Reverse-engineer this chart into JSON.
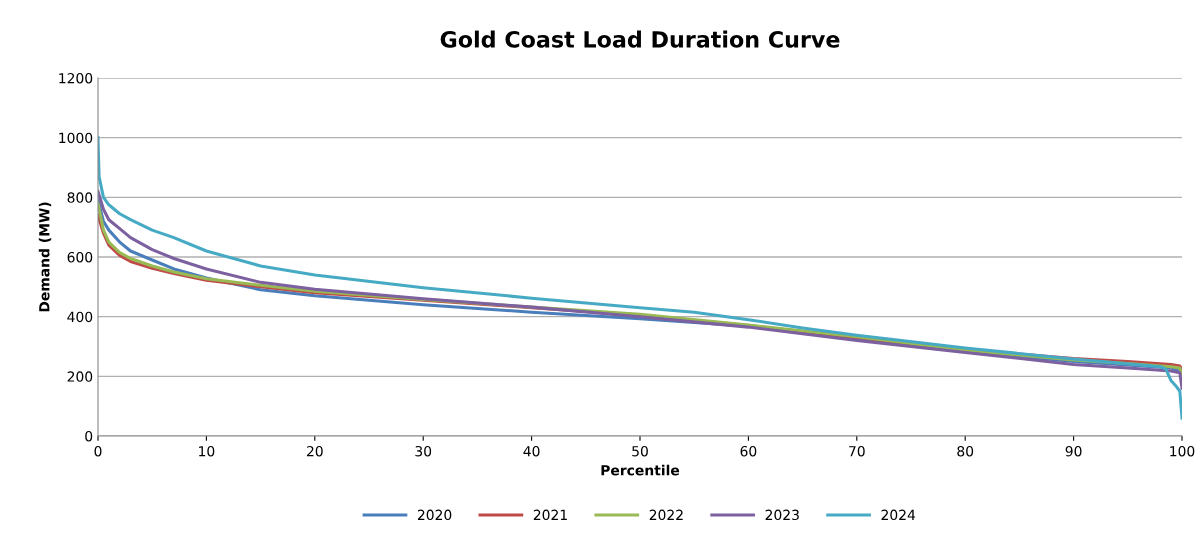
{
  "chart_data": {
    "type": "line",
    "title": "Gold Coast Load Duration Curve",
    "xlabel": "Percentile",
    "ylabel": "Demand (MW)",
    "xlim": [
      0,
      100
    ],
    "xticks": [
      0,
      10,
      20,
      30,
      40,
      50,
      60,
      70,
      80,
      90,
      100
    ],
    "ylim": [
      0,
      1200
    ],
    "yticks": [
      0,
      200,
      400,
      600,
      800,
      1000,
      1200
    ],
    "grid": "y",
    "legend": "bottom",
    "marker": "none",
    "line_style": "solid",
    "series": [
      {
        "name": "2020",
        "color": "#4a7ebb",
        "x": [
          0,
          0.5,
          1,
          2,
          3,
          5,
          7,
          10,
          15,
          20,
          30,
          40,
          50,
          60,
          70,
          80,
          90,
          95,
          99,
          100
        ],
        "values": [
          790,
          720,
          690,
          650,
          620,
          590,
          560,
          530,
          490,
          470,
          440,
          415,
          393,
          368,
          325,
          285,
          250,
          238,
          228,
          215
        ]
      },
      {
        "name": "2021",
        "color": "#be4b48",
        "x": [
          0,
          0.5,
          1,
          2,
          3,
          5,
          7,
          10,
          15,
          20,
          30,
          40,
          50,
          60,
          70,
          80,
          90,
          95,
          99,
          99.8,
          100
        ],
        "values": [
          740,
          680,
          640,
          605,
          585,
          562,
          545,
          522,
          500,
          480,
          455,
          430,
          405,
          370,
          330,
          290,
          260,
          250,
          240,
          235,
          220
        ]
      },
      {
        "name": "2022",
        "color": "#98b954",
        "x": [
          0,
          0.5,
          1,
          2,
          3,
          5,
          7,
          10,
          15,
          20,
          30,
          40,
          50,
          60,
          70,
          80,
          90,
          95,
          99,
          99.8,
          100
        ],
        "values": [
          780,
          690,
          650,
          615,
          595,
          570,
          550,
          527,
          505,
          485,
          458,
          432,
          408,
          372,
          333,
          288,
          255,
          243,
          232,
          228,
          195
        ]
      },
      {
        "name": "2023",
        "color": "#7d60a0",
        "x": [
          0,
          0.5,
          1,
          2,
          3,
          5,
          7,
          10,
          15,
          20,
          30,
          40,
          50,
          60,
          70,
          80,
          90,
          95,
          99,
          99.8,
          100
        ],
        "values": [
          820,
          760,
          725,
          695,
          665,
          625,
          595,
          560,
          515,
          492,
          460,
          432,
          400,
          365,
          320,
          280,
          240,
          228,
          218,
          212,
          160
        ]
      },
      {
        "name": "2024",
        "color": "#46aac5",
        "x": [
          0,
          0.1,
          0.5,
          1,
          2,
          3,
          5,
          7,
          10,
          15,
          20,
          30,
          40,
          50,
          55,
          60,
          65,
          70,
          80,
          90,
          95,
          98,
          98.5,
          99,
          99.5,
          99.8,
          100
        ],
        "values": [
          1000,
          870,
          800,
          775,
          745,
          725,
          690,
          665,
          620,
          570,
          540,
          497,
          462,
          430,
          415,
          390,
          362,
          338,
          295,
          258,
          242,
          232,
          225,
          185,
          165,
          150,
          60
        ]
      }
    ]
  }
}
